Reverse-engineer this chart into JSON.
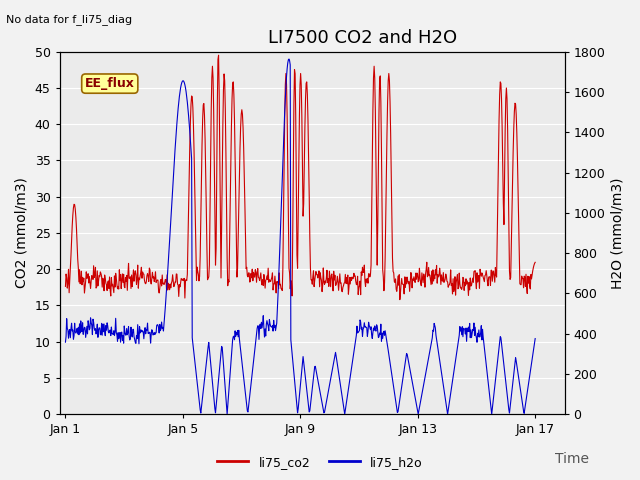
{
  "title": "LI7500 CO2 and H2O",
  "xlabel": "Time",
  "ylabel_left": "CO2 (mmol/m3)",
  "ylabel_right": "H2O (mmol/m3)",
  "ylim_left": [
    0,
    50
  ],
  "ylim_right": [
    0,
    1800
  ],
  "xlim": [
    -0.2,
    17.0
  ],
  "xtick_positions": [
    0,
    4,
    8,
    12,
    16
  ],
  "xtick_labels": [
    "Jan 1",
    "Jan 5",
    "Jan 9",
    "Jan 13",
    "Jan 17"
  ],
  "yticks_left": [
    0,
    5,
    10,
    15,
    20,
    25,
    30,
    35,
    40,
    45,
    50
  ],
  "yticks_right": [
    0,
    200,
    400,
    600,
    800,
    1000,
    1200,
    1400,
    1600,
    1800
  ],
  "co2_color": "#cc0000",
  "h2o_color": "#0000cc",
  "fig_bg_color": "#f2f2f2",
  "plot_bg_color": "#ebebeb",
  "grid_color": "#ffffff",
  "top_left_text": "No data for f_li75_diag",
  "legend_box_label": "EE_flux",
  "legend_box_bg": "#ffff99",
  "legend_box_edge": "#996600",
  "legend_label_co2": "li75_co2",
  "legend_label_h2o": "li75_h2o",
  "line_width": 0.8,
  "title_fontsize": 13,
  "axis_label_fontsize": 10,
  "tick_fontsize": 9,
  "top_left_fontsize": 8
}
